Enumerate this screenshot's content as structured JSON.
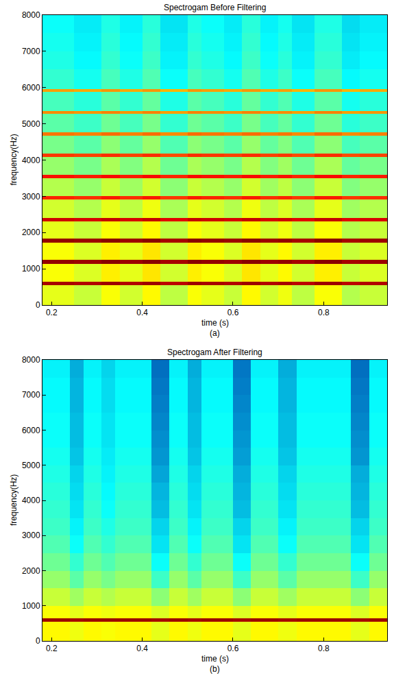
{
  "chart_data": [
    {
      "type": "heatmap",
      "title": "Spectrogam Before Filtering",
      "caption": "(a)",
      "xlabel": "time (s)",
      "ylabel": "frequency(Hz)",
      "xlim": [
        0.18,
        0.94
      ],
      "xticks": [
        0.2,
        0.4,
        0.6,
        0.8
      ],
      "ylim": [
        0,
        8000
      ],
      "yticks": [
        0,
        1000,
        2000,
        3000,
        4000,
        5000,
        6000,
        7000,
        8000
      ],
      "zlim": [
        0,
        100
      ],
      "x_bins": [
        0.18,
        0.25,
        0.31,
        0.35,
        0.4,
        0.44,
        0.5,
        0.53,
        0.58,
        0.62,
        0.66,
        0.7,
        0.73,
        0.78,
        0.84,
        0.88,
        0.94
      ],
      "y_bins": [
        0,
        540,
        650,
        1140,
        1250,
        1730,
        1830,
        2310,
        2410,
        2910,
        3000,
        3500,
        3590,
        4090,
        4180,
        4680,
        4760,
        5280,
        5360,
        5880,
        5960,
        6500,
        7000,
        7500,
        8000
      ],
      "z": [
        [
          60,
          57,
          62,
          58,
          63,
          56,
          62,
          60,
          57,
          63,
          58,
          61,
          56,
          62,
          55,
          57
        ],
        [
          96,
          95,
          97,
          95,
          97,
          94,
          97,
          96,
          95,
          97,
          95,
          96,
          94,
          97,
          94,
          95
        ],
        [
          62,
          59,
          64,
          60,
          65,
          58,
          64,
          62,
          59,
          65,
          60,
          63,
          58,
          64,
          57,
          59
        ],
        [
          98,
          97,
          99,
          97,
          99,
          96,
          99,
          98,
          97,
          99,
          97,
          98,
          96,
          99,
          96,
          97
        ],
        [
          62,
          59,
          64,
          60,
          65,
          58,
          64,
          62,
          59,
          65,
          60,
          63,
          58,
          64,
          57,
          59
        ],
        [
          98,
          97,
          99,
          97,
          99,
          96,
          99,
          98,
          97,
          99,
          97,
          98,
          96,
          99,
          96,
          97
        ],
        [
          60,
          57,
          62,
          58,
          63,
          56,
          62,
          60,
          57,
          63,
          58,
          61,
          56,
          62,
          55,
          57
        ],
        [
          92,
          91,
          93,
          91,
          93,
          90,
          93,
          92,
          91,
          93,
          91,
          92,
          90,
          93,
          90,
          91
        ],
        [
          58,
          55,
          60,
          56,
          61,
          54,
          60,
          58,
          55,
          61,
          56,
          59,
          54,
          60,
          53,
          55
        ],
        [
          84,
          83,
          85,
          83,
          85,
          82,
          85,
          84,
          83,
          85,
          83,
          84,
          82,
          85,
          82,
          83
        ],
        [
          55,
          52,
          57,
          53,
          58,
          51,
          57,
          55,
          52,
          58,
          53,
          56,
          51,
          57,
          50,
          52
        ],
        [
          86,
          85,
          87,
          85,
          87,
          84,
          87,
          86,
          85,
          87,
          85,
          86,
          84,
          87,
          84,
          85
        ],
        [
          52,
          49,
          54,
          50,
          55,
          48,
          54,
          52,
          49,
          55,
          50,
          53,
          48,
          54,
          47,
          49
        ],
        [
          82,
          81,
          83,
          81,
          83,
          80,
          83,
          82,
          81,
          83,
          81,
          82,
          80,
          83,
          80,
          81
        ],
        [
          49,
          46,
          51,
          47,
          52,
          45,
          51,
          49,
          46,
          52,
          47,
          50,
          45,
          51,
          44,
          46
        ],
        [
          76,
          75,
          77,
          75,
          77,
          74,
          77,
          76,
          75,
          77,
          75,
          76,
          74,
          77,
          74,
          75
        ],
        [
          46,
          43,
          48,
          44,
          49,
          42,
          48,
          46,
          43,
          49,
          44,
          47,
          42,
          48,
          41,
          43
        ],
        [
          74,
          73,
          75,
          73,
          75,
          72,
          75,
          74,
          73,
          75,
          73,
          74,
          72,
          75,
          72,
          73
        ],
        [
          44,
          41,
          46,
          42,
          47,
          40,
          46,
          44,
          41,
          47,
          42,
          45,
          40,
          46,
          39,
          41
        ],
        [
          72,
          71,
          73,
          71,
          73,
          70,
          73,
          72,
          71,
          73,
          71,
          72,
          70,
          73,
          70,
          71
        ],
        [
          42,
          39,
          44,
          40,
          45,
          38,
          44,
          42,
          39,
          45,
          40,
          43,
          38,
          44,
          37,
          39
        ],
        [
          40,
          37,
          42,
          38,
          43,
          36,
          42,
          40,
          37,
          43,
          38,
          41,
          36,
          42,
          35,
          37
        ],
        [
          39,
          36,
          41,
          37,
          42,
          35,
          41,
          39,
          36,
          42,
          37,
          40,
          35,
          41,
          34,
          36
        ],
        [
          38,
          35,
          40,
          36,
          41,
          34,
          40,
          38,
          35,
          41,
          36,
          39,
          34,
          40,
          33,
          35
        ]
      ]
    },
    {
      "type": "heatmap",
      "title": "Spectrogam After Filtering",
      "caption": "(b)",
      "xlabel": "time (s)",
      "ylabel": "frequency(Hz)",
      "xlim": [
        0.18,
        0.94
      ],
      "xticks": [
        0.2,
        0.4,
        0.6,
        0.8
      ],
      "ylim": [
        0,
        8000
      ],
      "yticks": [
        0,
        1000,
        2000,
        3000,
        4000,
        5000,
        6000,
        7000,
        8000
      ],
      "zlim": [
        0,
        100
      ],
      "x_bins": [
        0.18,
        0.24,
        0.27,
        0.31,
        0.34,
        0.42,
        0.46,
        0.5,
        0.53,
        0.6,
        0.64,
        0.7,
        0.74,
        0.86,
        0.9,
        0.94
      ],
      "y_bins": [
        0,
        540,
        650,
        1000,
        1500,
        2000,
        2500,
        3000,
        3500,
        4000,
        4500,
        5000,
        5500,
        6000,
        6500,
        7000,
        7500,
        8000
      ],
      "z": [
        [
          63,
          61,
          63,
          62,
          63,
          60,
          63,
          61,
          63,
          60,
          63,
          61,
          63,
          60,
          63
        ],
        [
          97,
          96,
          97,
          97,
          97,
          96,
          97,
          96,
          97,
          96,
          97,
          96,
          97,
          96,
          97
        ],
        [
          62,
          60,
          62,
          61,
          62,
          59,
          62,
          60,
          62,
          59,
          62,
          60,
          62,
          59,
          62
        ],
        [
          57,
          53,
          57,
          55,
          57,
          51,
          57,
          53,
          57,
          51,
          57,
          53,
          57,
          51,
          57
        ],
        [
          52,
          46,
          52,
          49,
          52,
          43,
          52,
          46,
          52,
          43,
          52,
          46,
          52,
          43,
          52
        ],
        [
          48,
          42,
          48,
          45,
          48,
          38,
          48,
          42,
          48,
          38,
          48,
          42,
          48,
          38,
          48
        ],
        [
          45,
          38,
          45,
          42,
          45,
          34,
          45,
          38,
          45,
          34,
          45,
          38,
          45,
          34,
          45
        ],
        [
          43,
          36,
          43,
          40,
          43,
          32,
          43,
          36,
          43,
          32,
          43,
          36,
          43,
          32,
          43
        ],
        [
          42,
          34,
          42,
          38,
          42,
          29,
          42,
          34,
          42,
          29,
          42,
          34,
          42,
          29,
          42
        ],
        [
          41,
          33,
          41,
          37,
          41,
          28,
          41,
          33,
          41,
          28,
          41,
          33,
          41,
          28,
          41
        ],
        [
          40,
          32,
          40,
          36,
          40,
          26,
          40,
          32,
          40,
          27,
          40,
          32,
          40,
          27,
          40
        ],
        [
          39,
          30,
          39,
          35,
          39,
          24,
          39,
          30,
          39,
          25,
          39,
          30,
          39,
          24,
          39
        ],
        [
          38,
          29,
          38,
          34,
          38,
          23,
          38,
          29,
          38,
          24,
          38,
          29,
          38,
          23,
          38
        ],
        [
          38,
          29,
          38,
          34,
          38,
          22,
          38,
          29,
          38,
          23,
          38,
          29,
          38,
          22,
          38
        ],
        [
          37,
          28,
          37,
          33,
          37,
          21,
          37,
          28,
          37,
          22,
          37,
          28,
          37,
          21,
          37
        ],
        [
          37,
          28,
          37,
          33,
          37,
          20,
          37,
          28,
          37,
          21,
          37,
          28,
          37,
          20,
          37
        ],
        [
          36,
          27,
          36,
          32,
          36,
          19,
          36,
          27,
          36,
          20,
          36,
          27,
          36,
          19,
          36
        ]
      ]
    }
  ]
}
